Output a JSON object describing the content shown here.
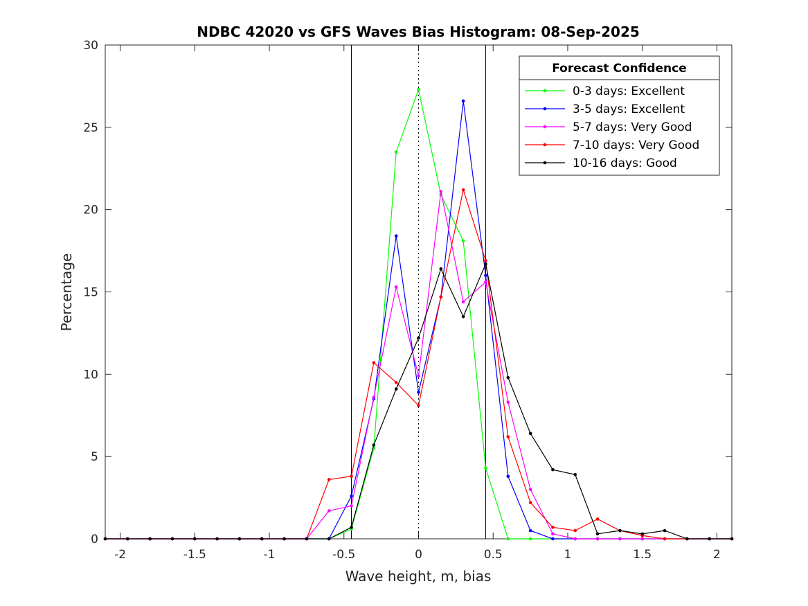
{
  "chart_data": {
    "type": "line",
    "title": "NDBC 42020 vs GFS Waves Bias Histogram: 08-Sep-2025",
    "xlabel": "Wave height, m, bias",
    "ylabel": "Percentage",
    "xlim": [
      -2.1,
      2.1
    ],
    "ylim": [
      0,
      30
    ],
    "xticks": [
      -2,
      -1.5,
      -1,
      -0.5,
      0,
      0.5,
      1,
      1.5,
      2
    ],
    "xtick_labels": [
      "-2",
      "-1.5",
      "-1",
      "-0.5",
      "0",
      "0.5",
      "1",
      "1.5",
      "2"
    ],
    "yticks": [
      0,
      5,
      10,
      15,
      20,
      25,
      30
    ],
    "ytick_labels": [
      "0",
      "5",
      "10",
      "15",
      "20",
      "25",
      "30"
    ],
    "grid": false,
    "legend_title": "Forecast Confidence",
    "legend_position": "top-right",
    "reference_lines": [
      {
        "x": -0.45,
        "style": "solid"
      },
      {
        "x": 0,
        "style": "dotted"
      },
      {
        "x": 0.45,
        "style": "solid"
      }
    ],
    "x": [
      -2.1,
      -1.95,
      -1.8,
      -1.65,
      -1.5,
      -1.35,
      -1.2,
      -1.05,
      -0.9,
      -0.75,
      -0.6,
      -0.45,
      -0.3,
      -0.15,
      0,
      0.15,
      0.3,
      0.45,
      0.6,
      0.75,
      0.9,
      1.05,
      1.2,
      1.35,
      1.5,
      1.65,
      1.8,
      1.95,
      2.1
    ],
    "series": [
      {
        "name": "0-3 days: Excellent",
        "color": "#00ff00",
        "values": [
          0,
          0,
          0,
          0,
          0,
          0,
          0,
          0,
          0,
          0,
          0,
          0.6,
          5.5,
          23.5,
          27.3,
          20.9,
          18.1,
          4.3,
          0,
          0,
          0,
          0,
          0,
          0,
          0,
          0,
          0,
          0,
          0
        ]
      },
      {
        "name": "3-5 days: Excellent",
        "color": "#0000ff",
        "values": [
          0,
          0,
          0,
          0,
          0,
          0,
          0,
          0,
          0,
          0,
          0,
          2.6,
          8.5,
          18.4,
          8.9,
          14.7,
          26.6,
          16.0,
          3.8,
          0.5,
          0,
          0,
          0,
          0,
          0,
          0,
          0,
          0,
          0
        ]
      },
      {
        "name": "5-7 days: Very Good",
        "color": "#ff00ff",
        "values": [
          0,
          0,
          0,
          0,
          0,
          0,
          0,
          0,
          0,
          0,
          1.7,
          2.0,
          8.6,
          15.3,
          9.9,
          21.1,
          14.4,
          15.6,
          8.3,
          3.0,
          0.3,
          0,
          0,
          0,
          0,
          0,
          0,
          0,
          0
        ]
      },
      {
        "name": "7-10 days: Very Good",
        "color": "#ff0000",
        "values": [
          0,
          0,
          0,
          0,
          0,
          0,
          0,
          0,
          0,
          0,
          3.6,
          3.8,
          10.7,
          9.5,
          8.1,
          14.7,
          21.2,
          16.9,
          6.2,
          2.2,
          0.7,
          0.5,
          1.2,
          0.5,
          0.2,
          0,
          0,
          0,
          0
        ]
      },
      {
        "name": "10-16 days: Good",
        "color": "#000000",
        "values": [
          0,
          0,
          0,
          0,
          0,
          0,
          0,
          0,
          0,
          0,
          0,
          0.7,
          5.7,
          9.1,
          12.2,
          16.4,
          13.5,
          16.7,
          9.8,
          6.4,
          4.2,
          3.9,
          0.3,
          0.5,
          0.3,
          0.5,
          0,
          0,
          0
        ]
      }
    ]
  }
}
